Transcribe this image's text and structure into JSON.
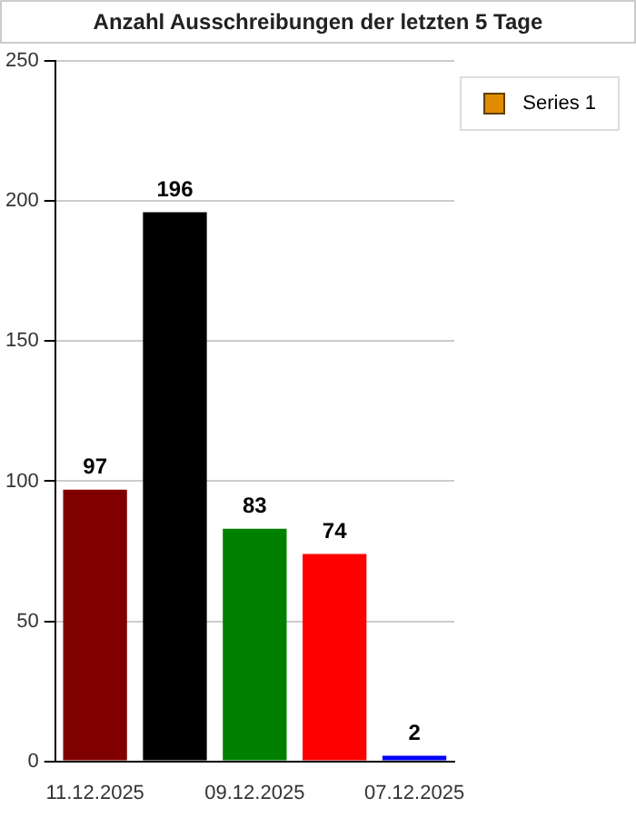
{
  "chart_data": {
    "type": "bar",
    "title": "Anzahl Ausschreibungen der letzten 5 Tage",
    "categories": [
      "11.12.2025",
      null,
      "09.12.2025",
      null,
      "07.12.2025"
    ],
    "series": [
      {
        "name": "Series 1",
        "color": "#e08c00",
        "colors": [
          "#800000",
          "#000000",
          "#008000",
          "#ff0000",
          "#0000ff"
        ],
        "values": [
          97,
          196,
          83,
          74,
          2
        ]
      }
    ],
    "ylim": [
      0,
      250
    ],
    "yticks": [
      0,
      50,
      100,
      150,
      200,
      250
    ],
    "grid": "y",
    "legend": "top right",
    "data_labels": true
  }
}
